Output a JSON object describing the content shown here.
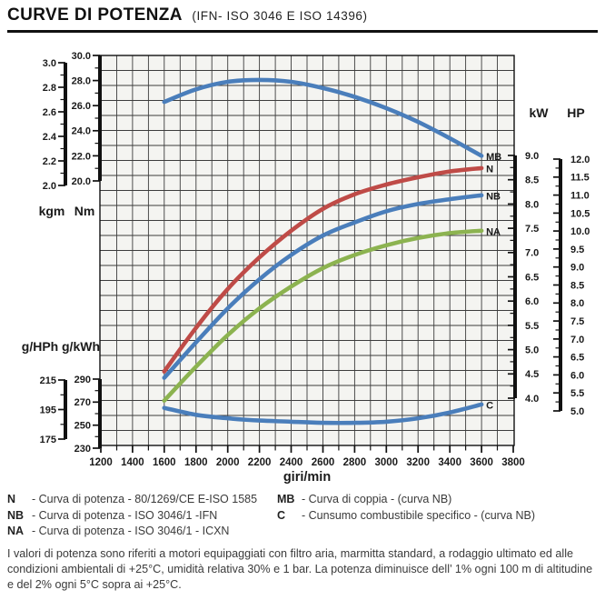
{
  "page": {
    "title": "CURVE DI POTENZA",
    "subtitle": "(IFN- ISO 3046 E ISO 14396)"
  },
  "chart_data": {
    "type": "line",
    "title": "CURVE DI POTENZA (IFN- ISO 3046 E ISO 14396)",
    "x_axis": {
      "label": "giri/min",
      "min": 1200,
      "max": 3800,
      "major_step": 200,
      "minor_step": 100,
      "tick_labels": [
        "1200",
        "1400",
        "1600",
        "1800",
        "2000",
        "2200",
        "2400",
        "2600",
        "2800",
        "3000",
        "3200",
        "3400",
        "3600",
        "3800"
      ]
    },
    "grid": {
      "rows": 26,
      "on": true
    },
    "scales": [
      {
        "id": "kgm",
        "header": "kgm",
        "unit": "kgm",
        "min": 2.0,
        "max": 3.0,
        "tick_labels": [
          "3.0",
          "2.8",
          "2.6",
          "2.4",
          "2.2",
          "2.0"
        ]
      },
      {
        "id": "nm",
        "header": "Nm",
        "unit": "Nm",
        "min": 20.0,
        "max": 30.0,
        "tick_labels": [
          "30.0",
          "28.0",
          "26.0",
          "24.0",
          "22.0",
          "20.0"
        ]
      },
      {
        "id": "kw",
        "header": "kW",
        "unit": "kW",
        "min": 4.0,
        "max": 9.0,
        "tick_labels": [
          "9.0",
          "8.5",
          "8.0",
          "7.5",
          "7.0",
          "6.5",
          "6.0",
          "5.5",
          "5.0",
          "4.5",
          "4.0"
        ]
      },
      {
        "id": "hp",
        "header": "HP",
        "unit": "HP",
        "min": 5.0,
        "max": 12.0,
        "tick_labels": [
          "12.0",
          "11.5",
          "11.0",
          "10.5",
          "10.0",
          "9.5",
          "9.0",
          "8.5",
          "8.0",
          "7.5",
          "7.0",
          "6.5",
          "6.0",
          "5.5",
          "5.0"
        ]
      },
      {
        "id": "ghph",
        "header": "g/HPh",
        "unit": "g/HPh",
        "min": 175,
        "max": 215,
        "tick_labels": [
          "215",
          "195",
          "175"
        ]
      },
      {
        "id": "gkwh",
        "header": "g/kWh",
        "unit": "g/kWh",
        "min": 230,
        "max": 290,
        "tick_labels": [
          "290",
          "270",
          "250",
          "230"
        ]
      }
    ],
    "series": [
      {
        "id": "MB",
        "name": "Curva di coppia",
        "scale": "nm",
        "color": "#4a7ebb",
        "points": [
          [
            1600,
            26.3
          ],
          [
            1800,
            27.3
          ],
          [
            2000,
            27.9
          ],
          [
            2200,
            28.05
          ],
          [
            2400,
            27.9
          ],
          [
            2600,
            27.4
          ],
          [
            2800,
            26.7
          ],
          [
            3000,
            25.8
          ],
          [
            3200,
            24.7
          ],
          [
            3400,
            23.4
          ],
          [
            3600,
            22.0
          ]
        ]
      },
      {
        "id": "N",
        "name": "Curva di potenza 80/1269/CE E-ISO 1585",
        "scale": "kw",
        "color": "#bf4b47",
        "points": [
          [
            1600,
            4.55
          ],
          [
            1800,
            5.45
          ],
          [
            2000,
            6.25
          ],
          [
            2200,
            6.9
          ],
          [
            2400,
            7.45
          ],
          [
            2600,
            7.9
          ],
          [
            2800,
            8.2
          ],
          [
            3000,
            8.4
          ],
          [
            3200,
            8.55
          ],
          [
            3400,
            8.67
          ],
          [
            3600,
            8.74
          ]
        ]
      },
      {
        "id": "NB",
        "name": "Curva di potenza ISO 3046/1 IFN",
        "scale": "kw",
        "color": "#4a7ebb",
        "points": [
          [
            1600,
            4.42
          ],
          [
            1800,
            5.15
          ],
          [
            2000,
            5.85
          ],
          [
            2200,
            6.45
          ],
          [
            2400,
            6.95
          ],
          [
            2600,
            7.35
          ],
          [
            2800,
            7.62
          ],
          [
            3000,
            7.85
          ],
          [
            3200,
            8.0
          ],
          [
            3400,
            8.1
          ],
          [
            3600,
            8.18
          ]
        ]
      },
      {
        "id": "NA",
        "name": "Curva di potenza ISO 3046/1 ICXN",
        "scale": "kw",
        "color": "#8cb350",
        "points": [
          [
            1600,
            3.95
          ],
          [
            1800,
            4.65
          ],
          [
            2000,
            5.3
          ],
          [
            2200,
            5.85
          ],
          [
            2400,
            6.3
          ],
          [
            2600,
            6.68
          ],
          [
            2800,
            6.95
          ],
          [
            3000,
            7.15
          ],
          [
            3200,
            7.3
          ],
          [
            3400,
            7.4
          ],
          [
            3600,
            7.45
          ]
        ]
      },
      {
        "id": "C",
        "name": "Consumo combustibile specifico",
        "scale": "gkwh",
        "color": "#4a7ebb",
        "points": [
          [
            1600,
            265
          ],
          [
            1800,
            259
          ],
          [
            2000,
            256
          ],
          [
            2200,
            254
          ],
          [
            2400,
            253
          ],
          [
            2600,
            252
          ],
          [
            2800,
            252
          ],
          [
            3000,
            253
          ],
          [
            3200,
            256
          ],
          [
            3400,
            261
          ],
          [
            3600,
            268
          ]
        ]
      }
    ],
    "colors": {
      "plot_bg": "#f4f4f1",
      "grid": "#3c3c3c",
      "axis": "#111111"
    }
  },
  "legend": {
    "left": [
      {
        "term": "N",
        "desc": "- Curva di potenza - 80/1269/CE E-ISO 1585"
      },
      {
        "term": "NB",
        "desc": "- Curva di potenza - ISO 3046/1 -IFN"
      },
      {
        "term": "NA",
        "desc": "- Curva di potenza - ISO 3046/1 - ICXN"
      }
    ],
    "right": [
      {
        "term": "MB",
        "desc": "- Curva di coppia - (curva NB)"
      },
      {
        "term": "C",
        "desc": "- Cunsumo combustibile specifico - (curva NB)"
      }
    ]
  },
  "footer": {
    "text": "I valori di potenza sono riferiti a motori equipaggiati con filtro aria, marmitta standard, a rodaggio ultimato ed alle condizioni ambientali di +25°C, umidità relativa 30% e 1 bar. La potenza diminuisce dell’ 1% ogni 100 m di altitudine e del 2% ogni 5°C sopra ai +25°C."
  }
}
